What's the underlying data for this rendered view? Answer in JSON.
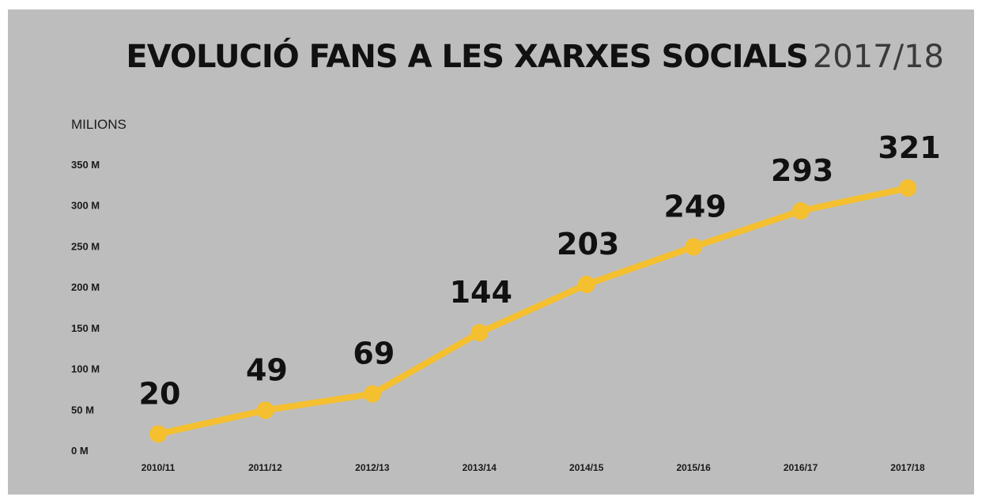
{
  "chart_data": {
    "type": "line",
    "title": "EVOLUCIÓ FANS A LES XARXES SOCIALS",
    "subtitle": "2017/18",
    "ylabel": "MILIONS",
    "xlabel": "",
    "ylim": [
      0,
      350
    ],
    "yticks": [
      0,
      50,
      100,
      150,
      200,
      250,
      300,
      350
    ],
    "ytick_labels": [
      "0 M",
      "50 M",
      "100 M",
      "150 M",
      "200 M",
      "250 M",
      "300 M",
      "350 M"
    ],
    "categories": [
      "2010/11",
      "2011/12",
      "2012/13",
      "2013/14",
      "2014/15",
      "2015/16",
      "2016/17",
      "2017/18"
    ],
    "values": [
      20,
      49,
      69,
      144,
      203,
      249,
      293,
      321
    ],
    "data_labels": [
      "20",
      "49",
      "69",
      "144",
      "203",
      "249",
      "293",
      "321"
    ],
    "grid": false,
    "legend": "none",
    "colors": {
      "line": "#f5c030",
      "background": "#bdbdbd",
      "text": "#111111"
    }
  }
}
